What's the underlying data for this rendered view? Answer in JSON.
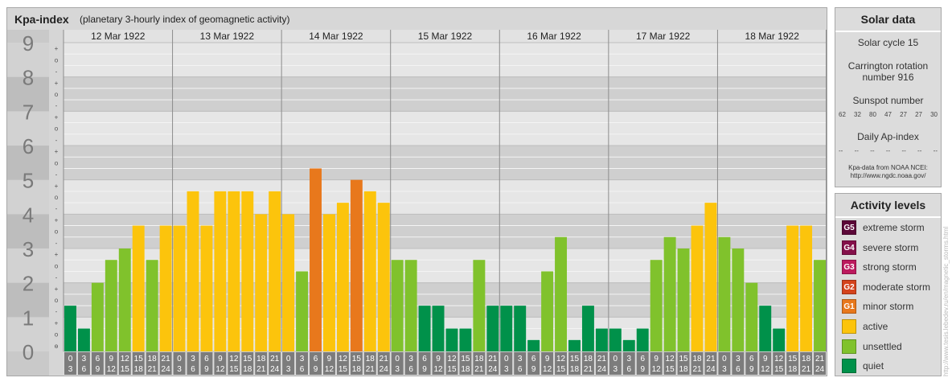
{
  "title": {
    "main": "Kpa-index",
    "sub": "(planetary 3-hourly index of geomagnetic activity)"
  },
  "chart_data": {
    "type": "bar",
    "title": "Kpa-index",
    "subtitle": "(planetary 3-hourly index of geomagnetic activity)",
    "ylim": [
      0,
      9
    ],
    "y_tick_labels": [
      "0",
      "1",
      "2",
      "3",
      "4",
      "5",
      "6",
      "7",
      "8",
      "9"
    ],
    "sub_tick_marks": [
      "-",
      "o",
      "+"
    ],
    "days": [
      "12 Mar 1922",
      "13 Mar 1922",
      "14 Mar 1922",
      "15 Mar 1922",
      "16 Mar 1922",
      "17 Mar 1922",
      "18 Mar 1922"
    ],
    "slot_start_labels": [
      "0",
      "3",
      "6",
      "9",
      "12",
      "15",
      "18",
      "21"
    ],
    "slot_end_labels": [
      "3",
      "6",
      "9",
      "12",
      "15",
      "18",
      "21",
      "24"
    ],
    "values": [
      1.333,
      0.667,
      2.0,
      2.667,
      3.0,
      3.667,
      2.667,
      3.667,
      3.667,
      4.667,
      3.667,
      4.667,
      4.667,
      4.667,
      4.0,
      4.667,
      4.0,
      2.333,
      5.333,
      4.0,
      4.333,
      5.0,
      4.667,
      4.333,
      2.667,
      2.667,
      1.333,
      1.333,
      0.667,
      0.667,
      2.667,
      1.333,
      1.333,
      1.333,
      0.333,
      2.333,
      3.333,
      0.333,
      1.333,
      0.667,
      0.667,
      0.333,
      0.667,
      2.667,
      3.333,
      3.0,
      3.667,
      4.333,
      3.333,
      3.0,
      2.0,
      1.333,
      0.667,
      3.667,
      3.667,
      2.667
    ],
    "grid": true,
    "legend_position": "right"
  },
  "colors": {
    "quiet": "#00914a",
    "unsettled": "#80c22c",
    "active": "#fcc40c",
    "G1": "#e8781c",
    "G2": "#d4431c",
    "G3": "#bc1a5e",
    "G4": "#84104a",
    "G5": "#5c0838"
  },
  "solar": {
    "title": "Solar data",
    "cycle": "Solar cycle 15",
    "carrington_line1": "Carrington rotation",
    "carrington_line2": "number 916",
    "sunspot_title": "Sunspot number",
    "sunspot_values": [
      "62",
      "32",
      "80",
      "47",
      "27",
      "27",
      "30"
    ],
    "ap_title": "Daily Ap-index",
    "ap_values": [
      "--",
      "--",
      "--",
      "--",
      "--",
      "--",
      "--"
    ],
    "source_line1": "Kpa-data from NOAA NCEI:",
    "source_line2": "http://www.ngdc.noaa.gov/"
  },
  "levels": {
    "title": "Activity levels",
    "items": [
      {
        "code": "G5",
        "label": "extreme storm",
        "color": "#5c0838"
      },
      {
        "code": "G4",
        "label": "severe storm",
        "color": "#84104a"
      },
      {
        "code": "G3",
        "label": "strong storm",
        "color": "#bc1a5e"
      },
      {
        "code": "G2",
        "label": "moderate storm",
        "color": "#d4431c"
      },
      {
        "code": "G1",
        "label": "minor storm",
        "color": "#e8781c"
      },
      {
        "code": "",
        "label": "active",
        "color": "#fcc40c"
      },
      {
        "code": "",
        "label": "unsettled",
        "color": "#80c22c"
      },
      {
        "code": "",
        "label": "quiet",
        "color": "#00914a"
      }
    ]
  },
  "watermark": "http://www.tesis.lebedev.ru/en/magnetic_storms.html"
}
